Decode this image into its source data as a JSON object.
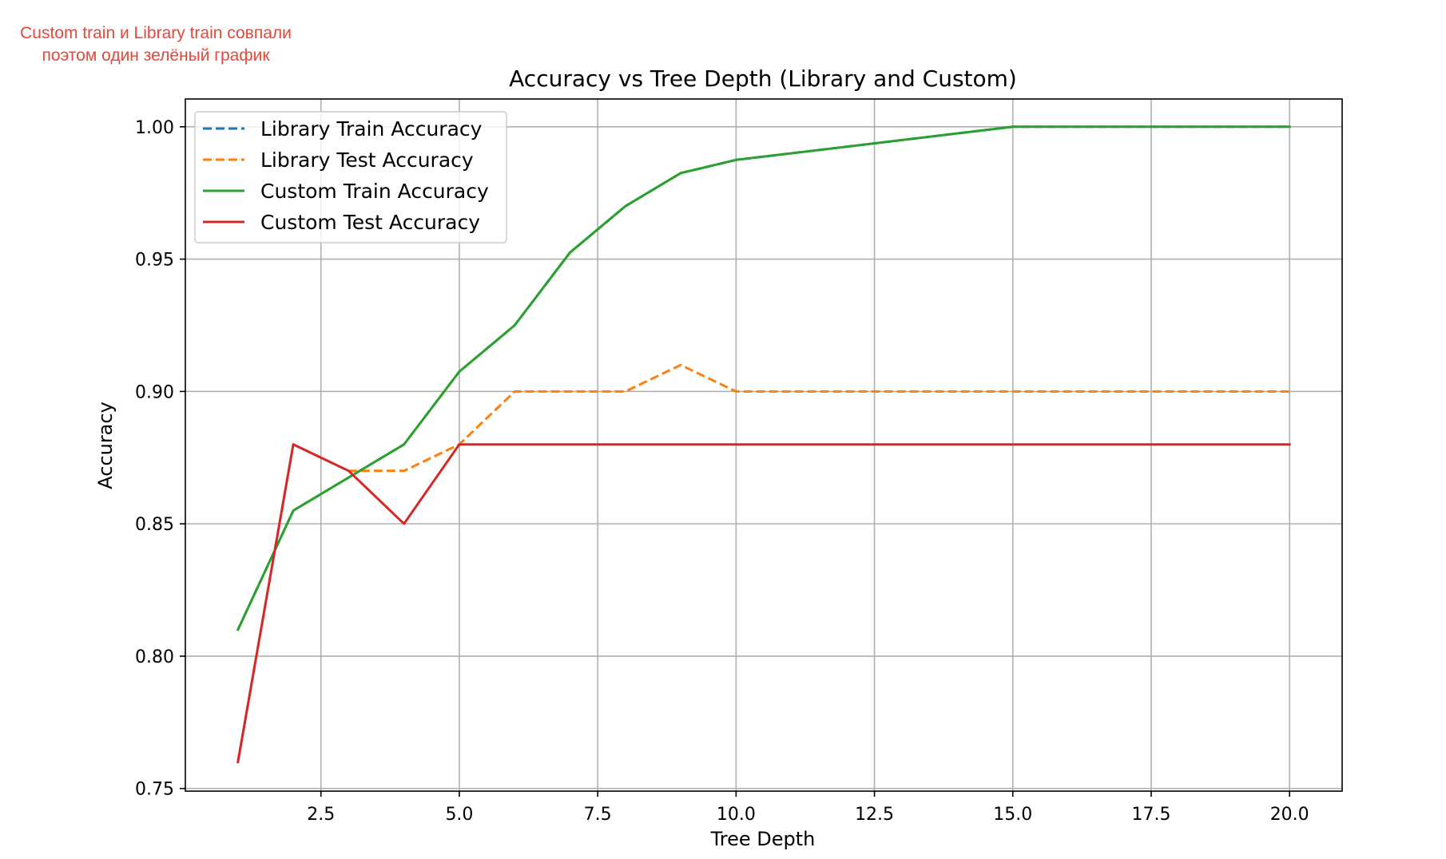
{
  "annotation": {
    "line1": "Custom train и Library train совпали",
    "line2": "поэтом один зелёный график",
    "color": "#e8463a"
  },
  "chart_data": {
    "type": "line",
    "title": "Accuracy vs Tree Depth (Library and Custom)",
    "xlabel": "Tree Depth",
    "ylabel": "Accuracy",
    "xlim": [
      0.05,
      20.95
    ],
    "ylim": [
      0.749,
      1.0105
    ],
    "xticks": [
      2.5,
      5.0,
      7.5,
      10.0,
      12.5,
      15.0,
      17.5,
      20.0
    ],
    "xtick_labels": [
      "2.5",
      "5.0",
      "7.5",
      "10.0",
      "12.5",
      "15.0",
      "17.5",
      "20.0"
    ],
    "yticks": [
      0.75,
      0.8,
      0.85,
      0.9,
      0.95,
      1.0
    ],
    "ytick_labels": [
      "0.75",
      "0.80",
      "0.85",
      "0.90",
      "0.95",
      "1.00"
    ],
    "grid": true,
    "legend_position": "top-left",
    "x": [
      1,
      2,
      3,
      4,
      5,
      6,
      7,
      8,
      9,
      10,
      15,
      20
    ],
    "series": [
      {
        "name": "Library Train Accuracy",
        "color": "#1f77b4",
        "dashed": true,
        "values": [
          0.81,
          0.855,
          0.8675,
          0.88,
          0.9075,
          0.925,
          0.9525,
          0.97,
          0.9825,
          0.9875,
          1.0,
          1.0
        ]
      },
      {
        "name": "Library Test Accuracy",
        "color": "#ff7f0e",
        "dashed": true,
        "values": [
          0.76,
          0.88,
          0.87,
          0.87,
          0.88,
          0.9,
          0.9,
          0.9,
          0.91,
          0.9,
          0.9,
          0.9
        ]
      },
      {
        "name": "Custom Train Accuracy",
        "color": "#2ca02c",
        "dashed": false,
        "values": [
          0.81,
          0.855,
          0.8675,
          0.88,
          0.9075,
          0.925,
          0.9525,
          0.97,
          0.9825,
          0.9875,
          1.0,
          1.0
        ]
      },
      {
        "name": "Custom Test Accuracy",
        "color": "#d62728",
        "dashed": false,
        "values": [
          0.76,
          0.88,
          0.87,
          0.85,
          0.88,
          0.88,
          0.88,
          0.88,
          0.88,
          0.88,
          0.88,
          0.88
        ]
      }
    ]
  }
}
